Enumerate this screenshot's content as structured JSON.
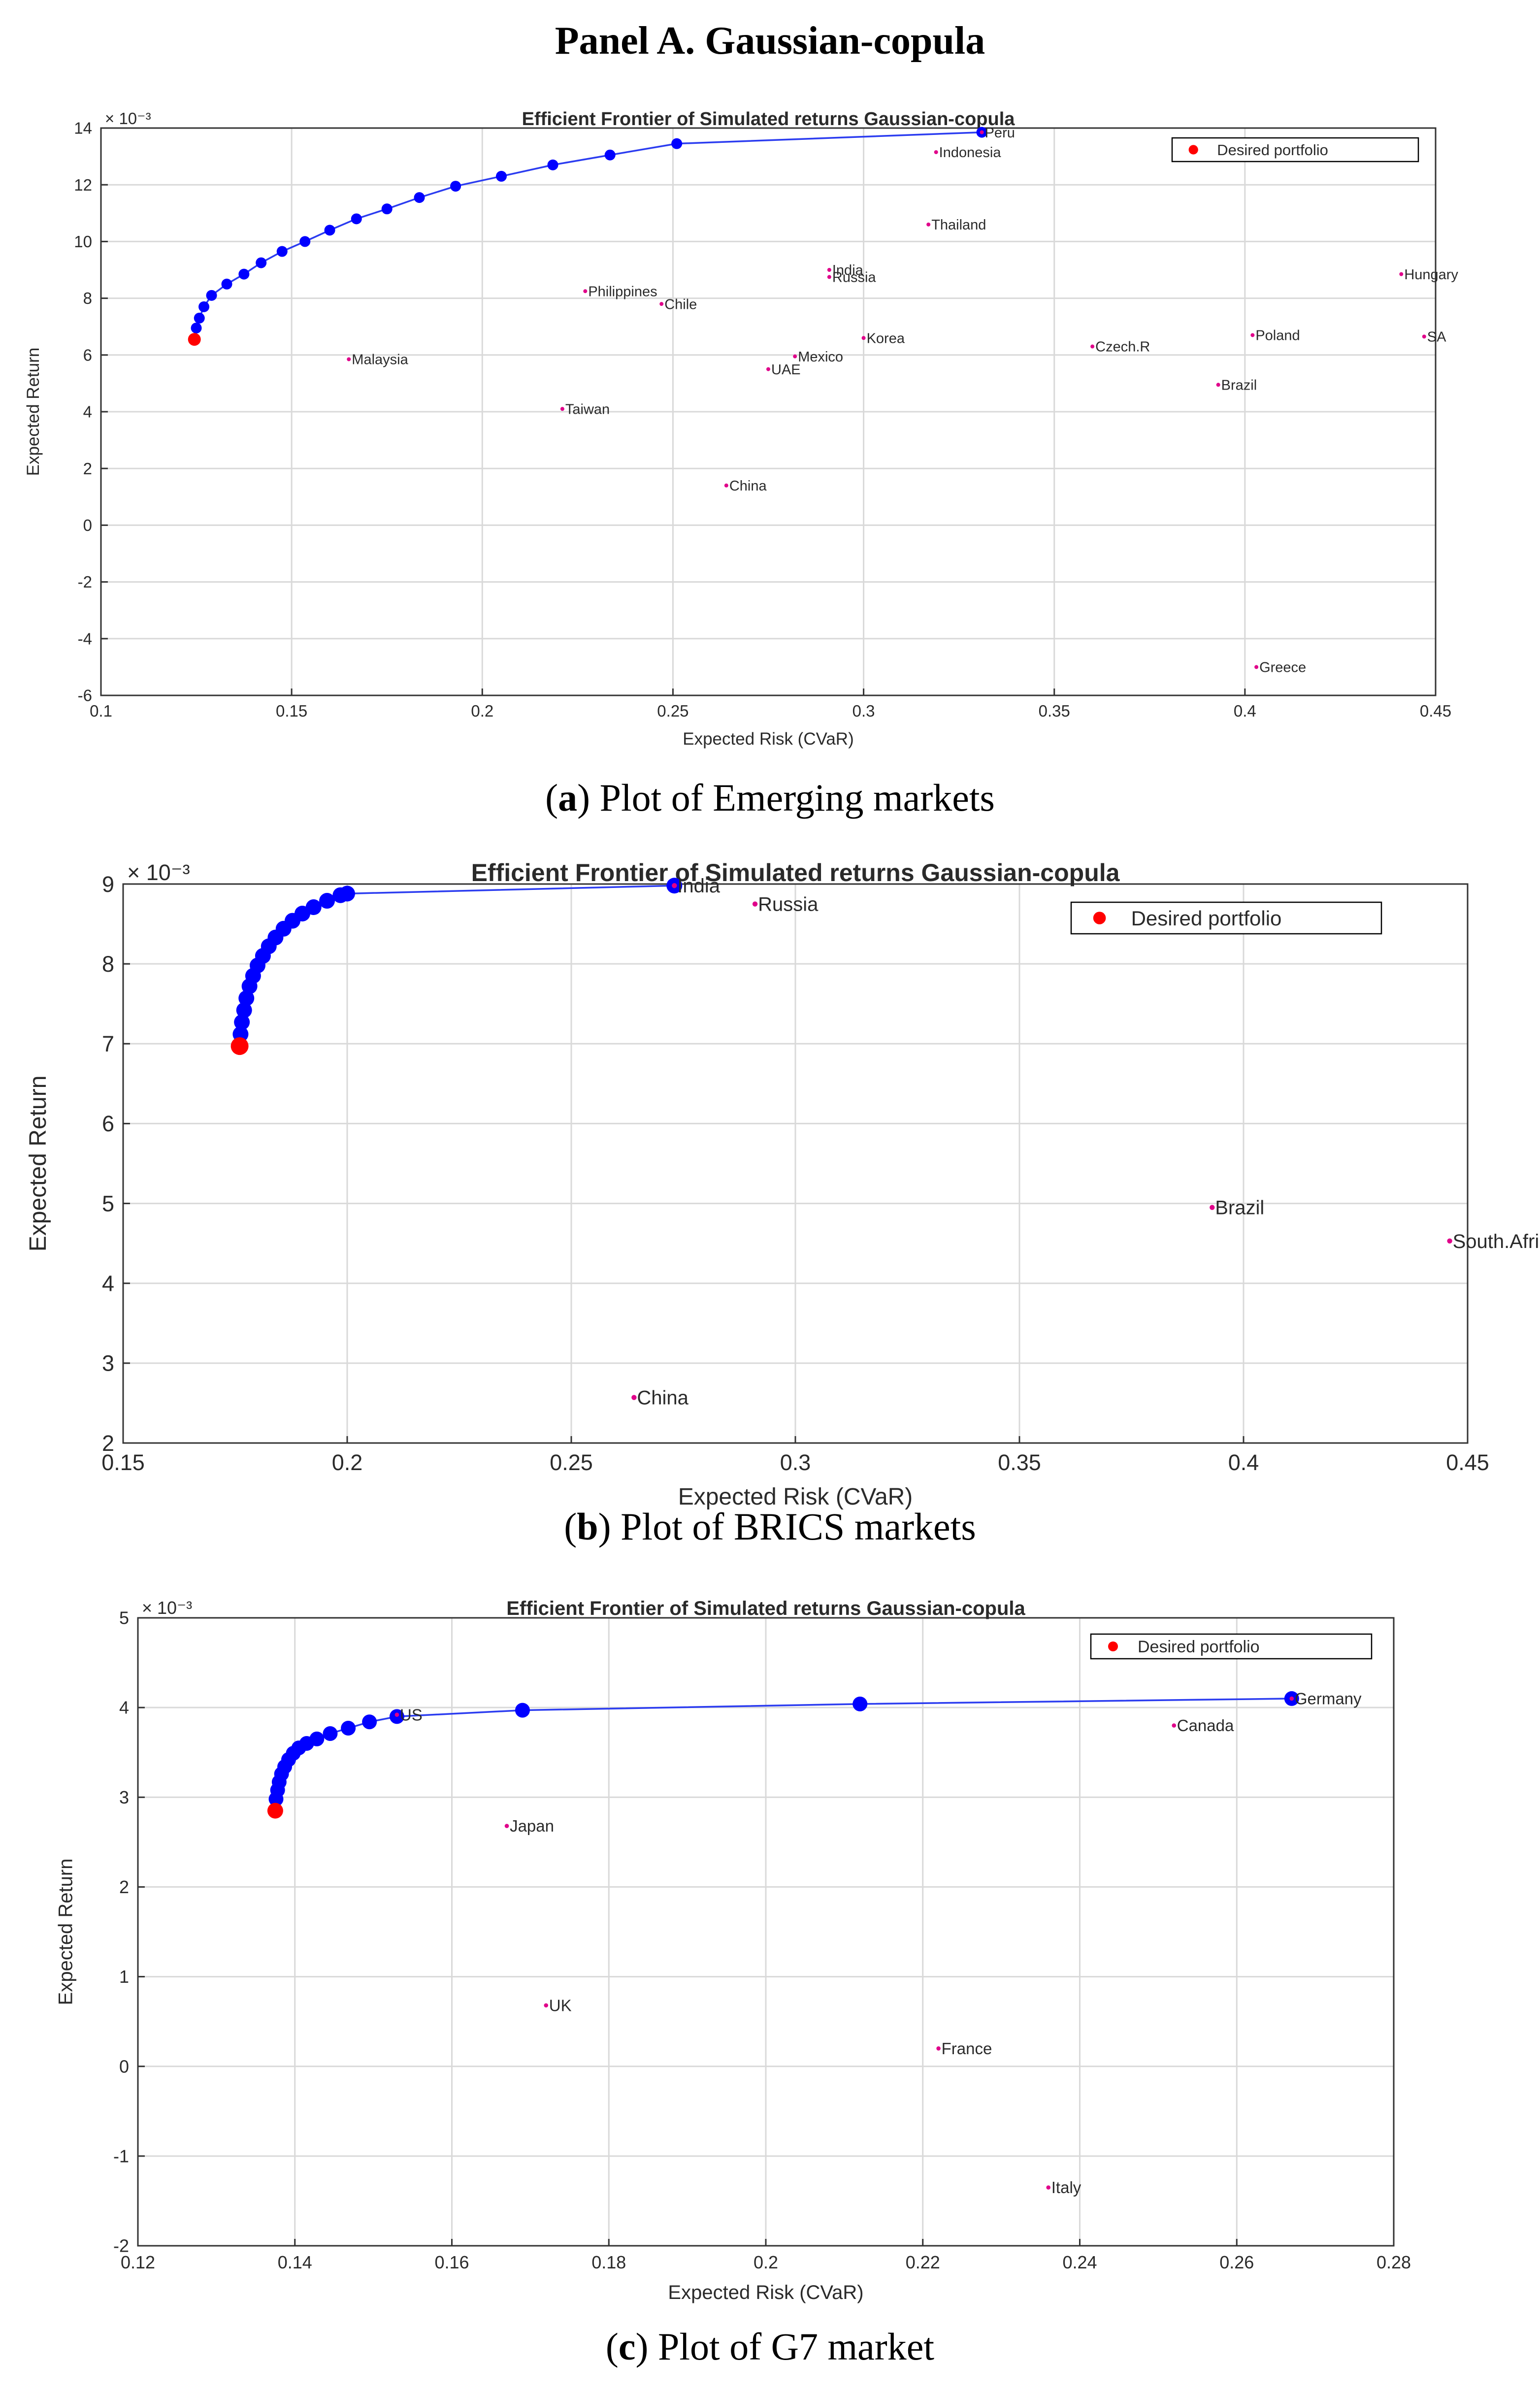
{
  "page": {
    "panel_title": "Panel A. Gaussian-copula"
  },
  "captions": [
    {
      "letter": "a",
      "open": "(",
      "close": ") Plot of Emerging markets"
    },
    {
      "letter": "b",
      "open": "(",
      "close": ") Plot of BRICS markets"
    },
    {
      "letter": "c",
      "open": "(",
      "close": ") Plot of G7 market"
    }
  ],
  "colors": {
    "frontier": "#0000ff",
    "frontier_line": "#2b3cf0",
    "desired": "#ff0000",
    "label_marker": "#e0008a",
    "grid": "#d9d9d9",
    "axis": "#333333"
  },
  "chart_data": [
    {
      "type": "scatter",
      "title": "Efficient Frontier of Simulated returns Gaussian-copula",
      "xlabel": "Expected Risk (CVaR)",
      "ylabel": "Expected Return",
      "exponent_label": "× 10⁻³",
      "xlim": [
        0.1,
        0.45
      ],
      "ylim": [
        -6,
        14
      ],
      "xticks": [
        0.1,
        0.15,
        0.2,
        0.25,
        0.3,
        0.35,
        0.4,
        0.45
      ],
      "xtick_labels": [
        "0.1",
        "0.15",
        "0.2",
        "0.25",
        "0.3",
        "0.35",
        "0.4",
        "0.45"
      ],
      "yticks": [
        -6,
        -4,
        -2,
        0,
        2,
        4,
        6,
        8,
        10,
        12,
        14
      ],
      "ytick_labels": [
        "-6",
        "-4",
        "-2",
        "0",
        "2",
        "4",
        "6",
        "8",
        "10",
        "12",
        "14"
      ],
      "grid": true,
      "legend": {
        "label": "Desired portfolio",
        "position": "top-right"
      },
      "frontier": {
        "x": [
          0.1245,
          0.125,
          0.1258,
          0.127,
          0.129,
          0.133,
          0.1375,
          0.142,
          0.1475,
          0.1535,
          0.16,
          0.167,
          0.175,
          0.1835,
          0.193,
          0.205,
          0.2185,
          0.2335,
          0.251,
          0.331
        ],
        "y": [
          6.55,
          6.95,
          7.3,
          7.7,
          8.1,
          8.5,
          8.85,
          9.25,
          9.65,
          10.0,
          10.4,
          10.8,
          11.15,
          11.55,
          11.95,
          12.3,
          12.7,
          13.05,
          13.45,
          13.85
        ]
      },
      "desired": {
        "x": 0.1245,
        "y": 6.55
      },
      "assets": [
        {
          "name": "Peru",
          "x": 0.331,
          "y": 13.85
        },
        {
          "name": "Indonesia",
          "x": 0.319,
          "y": 13.15
        },
        {
          "name": "Thailand",
          "x": 0.317,
          "y": 10.6
        },
        {
          "name": "Hungary",
          "x": 0.441,
          "y": 8.85
        },
        {
          "name": "India",
          "x": 0.291,
          "y": 9.0
        },
        {
          "name": "Russia",
          "x": 0.291,
          "y": 8.75
        },
        {
          "name": "Philippines",
          "x": 0.227,
          "y": 8.25
        },
        {
          "name": "Chile",
          "x": 0.247,
          "y": 7.8
        },
        {
          "name": "Korea",
          "x": 0.3,
          "y": 6.6
        },
        {
          "name": "Czech.R",
          "x": 0.36,
          "y": 6.3
        },
        {
          "name": "Poland",
          "x": 0.402,
          "y": 6.7
        },
        {
          "name": "SA",
          "x": 0.447,
          "y": 6.65
        },
        {
          "name": "Malaysia",
          "x": 0.165,
          "y": 5.85
        },
        {
          "name": "Mexico",
          "x": 0.282,
          "y": 5.95
        },
        {
          "name": "UAE",
          "x": 0.275,
          "y": 5.5
        },
        {
          "name": "Brazil",
          "x": 0.393,
          "y": 4.95
        },
        {
          "name": "Taiwan",
          "x": 0.221,
          "y": 4.1
        },
        {
          "name": "China",
          "x": 0.264,
          "y": 1.4
        },
        {
          "name": "Greece",
          "x": 0.403,
          "y": -5.0
        }
      ]
    },
    {
      "type": "scatter",
      "title": "Efficient Frontier of Simulated returns Gaussian-copula",
      "xlabel": "Expected Risk (CVaR)",
      "ylabel": "Expected Return",
      "exponent_label": "× 10⁻³",
      "xlim": [
        0.15,
        0.45
      ],
      "ylim": [
        2,
        9
      ],
      "xticks": [
        0.15,
        0.2,
        0.25,
        0.3,
        0.35,
        0.4,
        0.45
      ],
      "xtick_labels": [
        "0.15",
        "0.2",
        "0.25",
        "0.3",
        "0.35",
        "0.4",
        "0.45"
      ],
      "yticks": [
        2,
        3,
        4,
        5,
        6,
        7,
        8,
        9
      ],
      "ytick_labels": [
        "2",
        "3",
        "4",
        "5",
        "6",
        "7",
        "8",
        "9"
      ],
      "grid": true,
      "legend": {
        "label": "Desired portfolio",
        "position": "top-right"
      },
      "frontier": {
        "x": [
          0.176,
          0.1762,
          0.1765,
          0.177,
          0.1775,
          0.1782,
          0.179,
          0.18,
          0.1812,
          0.1825,
          0.184,
          0.1858,
          0.1878,
          0.19,
          0.1925,
          0.1955,
          0.1985,
          0.2,
          0.273
        ],
        "y": [
          6.97,
          7.12,
          7.27,
          7.42,
          7.57,
          7.72,
          7.85,
          7.98,
          8.1,
          8.22,
          8.33,
          8.44,
          8.54,
          8.63,
          8.71,
          8.79,
          8.86,
          8.88,
          8.98
        ]
      },
      "desired": {
        "x": 0.176,
        "y": 6.97
      },
      "assets": [
        {
          "name": "India",
          "x": 0.273,
          "y": 8.98
        },
        {
          "name": "Russia",
          "x": 0.291,
          "y": 8.75
        },
        {
          "name": "Brazil",
          "x": 0.393,
          "y": 4.95
        },
        {
          "name": "South.Africa",
          "x": 0.446,
          "y": 4.53
        },
        {
          "name": "China",
          "x": 0.264,
          "y": 2.57
        }
      ]
    },
    {
      "type": "scatter",
      "title": "Efficient Frontier of Simulated returns Gaussian-copula",
      "xlabel": "Expected Risk (CVaR)",
      "ylabel": "Expected Return",
      "exponent_label": "× 10⁻³",
      "xlim": [
        0.12,
        0.28
      ],
      "ylim": [
        -2,
        5
      ],
      "xticks": [
        0.12,
        0.14,
        0.16,
        0.18,
        0.2,
        0.22,
        0.24,
        0.26,
        0.28
      ],
      "xtick_labels": [
        "0.12",
        "0.14",
        "0.16",
        "0.18",
        "0.2",
        "0.22",
        "0.24",
        "0.26",
        "0.28"
      ],
      "yticks": [
        -2,
        -1,
        0,
        1,
        2,
        3,
        4,
        5
      ],
      "ytick_labels": [
        "-2",
        "-1",
        "0",
        "1",
        "2",
        "3",
        "4",
        "5"
      ],
      "grid": true,
      "legend": {
        "label": "Desired portfolio",
        "position": "top-right"
      },
      "frontier": {
        "x": [
          0.1375,
          0.1376,
          0.1378,
          0.138,
          0.1383,
          0.1387,
          0.1392,
          0.1398,
          0.1405,
          0.1415,
          0.1428,
          0.1445,
          0.1468,
          0.1495,
          0.153,
          0.169,
          0.212,
          0.267
        ],
        "y": [
          2.85,
          2.98,
          3.08,
          3.17,
          3.26,
          3.34,
          3.42,
          3.49,
          3.55,
          3.6,
          3.65,
          3.71,
          3.77,
          3.84,
          3.9,
          3.97,
          4.04,
          4.1
        ]
      },
      "desired": {
        "x": 0.1375,
        "y": 2.85
      },
      "assets": [
        {
          "name": "US",
          "x": 0.153,
          "y": 3.92
        },
        {
          "name": "Germany",
          "x": 0.267,
          "y": 4.1
        },
        {
          "name": "Canada",
          "x": 0.252,
          "y": 3.8
        },
        {
          "name": "Japan",
          "x": 0.167,
          "y": 2.68
        },
        {
          "name": "UK",
          "x": 0.172,
          "y": 0.68
        },
        {
          "name": "France",
          "x": 0.222,
          "y": 0.2
        },
        {
          "name": "Italy",
          "x": 0.236,
          "y": -1.35
        }
      ]
    }
  ]
}
